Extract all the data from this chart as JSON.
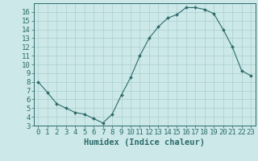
{
  "title": "",
  "xlabel": "Humidex (Indice chaleur)",
  "ylabel": "",
  "x": [
    0,
    1,
    2,
    3,
    4,
    5,
    6,
    7,
    8,
    9,
    10,
    11,
    12,
    13,
    14,
    15,
    16,
    17,
    18,
    19,
    20,
    21,
    22,
    23
  ],
  "y": [
    8.0,
    6.8,
    5.5,
    5.0,
    4.5,
    4.3,
    3.8,
    3.3,
    4.3,
    6.5,
    8.5,
    11.0,
    13.0,
    14.3,
    15.3,
    15.7,
    16.5,
    16.5,
    16.3,
    15.8,
    14.0,
    12.0,
    9.3,
    8.7
  ],
  "line_color": "#2d6b6b",
  "marker": "D",
  "marker_size": 2.0,
  "bg_color": "#cce8e8",
  "grid_color": "#aacfcf",
  "ylim": [
    3,
    17
  ],
  "xlim": [
    -0.5,
    23.5
  ],
  "yticks": [
    3,
    4,
    5,
    6,
    7,
    8,
    9,
    10,
    11,
    12,
    13,
    14,
    15,
    16
  ],
  "xticks": [
    0,
    1,
    2,
    3,
    4,
    5,
    6,
    7,
    8,
    9,
    10,
    11,
    12,
    13,
    14,
    15,
    16,
    17,
    18,
    19,
    20,
    21,
    22,
    23
  ],
  "tick_color": "#2d6b6b",
  "axis_color": "#2d6b6b",
  "xlabel_fontsize": 7.5,
  "tick_fontsize": 6.5
}
